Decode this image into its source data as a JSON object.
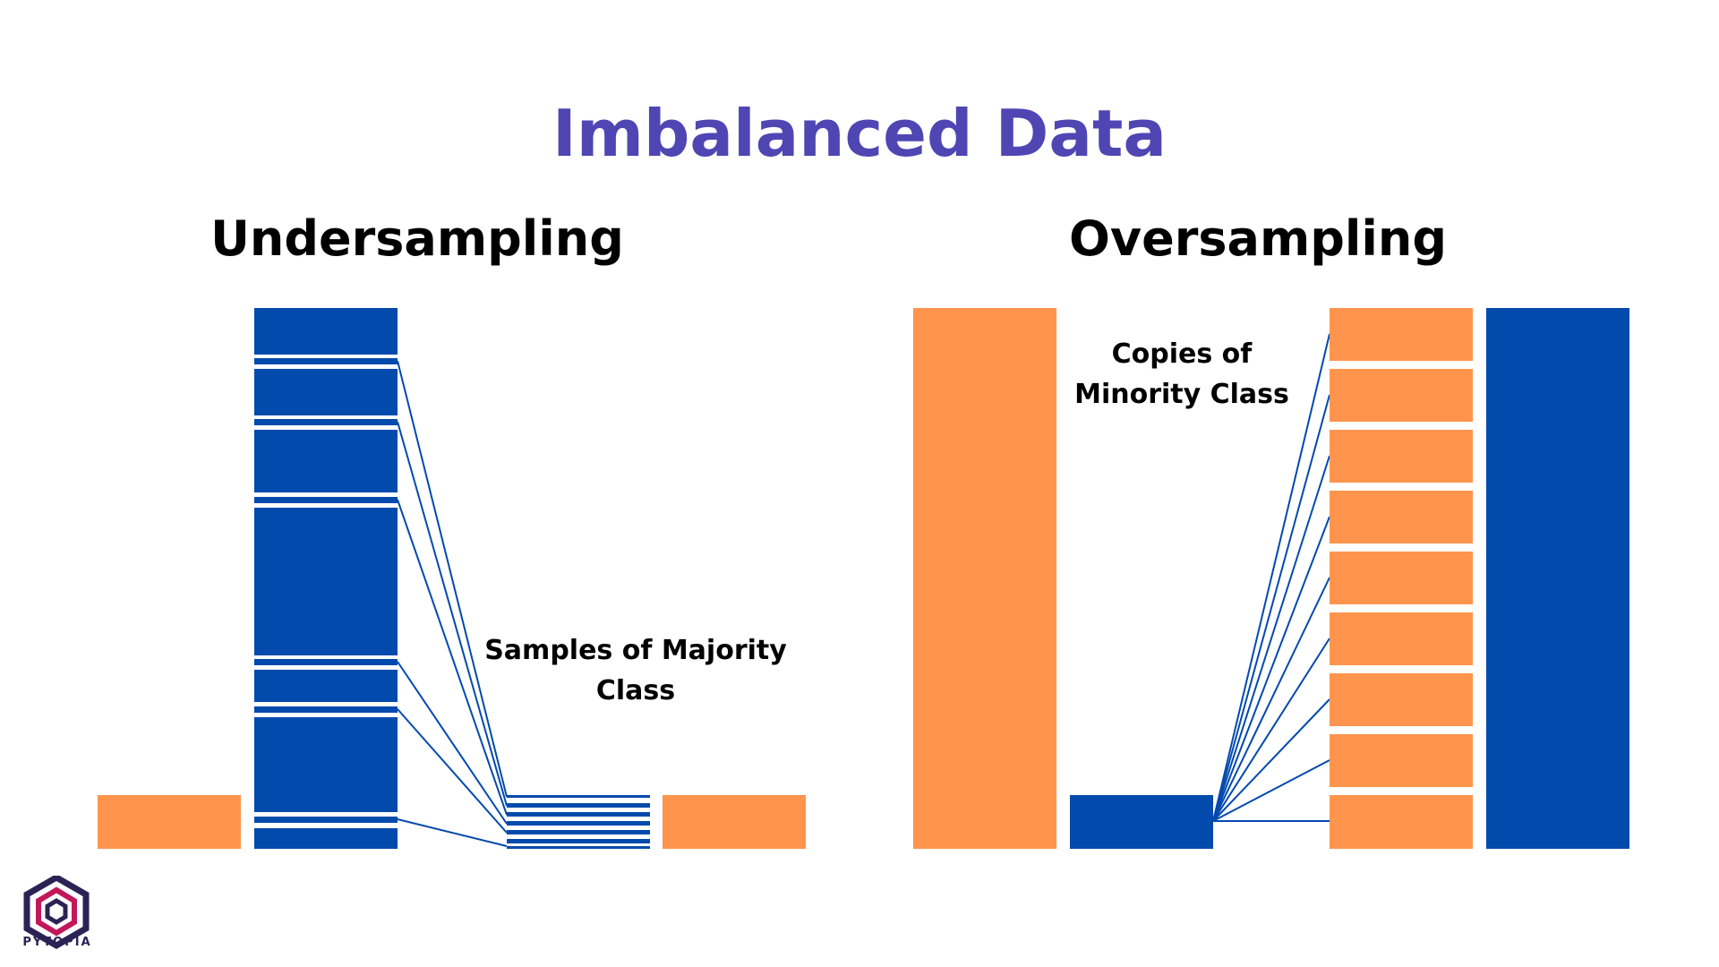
{
  "title": "Imbalanced Data",
  "undersampling": {
    "heading": "Undersampling",
    "annotation": "Samples of Majority\nClass"
  },
  "oversampling": {
    "heading": "Oversampling",
    "annotation": "Copies of\nMinority Class"
  },
  "colors": {
    "title": "#4f46b4",
    "minority": "#ff944d",
    "majority": "#034aad",
    "text": "#000000"
  },
  "logo": {
    "text": "PYTOPIA",
    "icon": "hexagon-logo-icon"
  }
}
